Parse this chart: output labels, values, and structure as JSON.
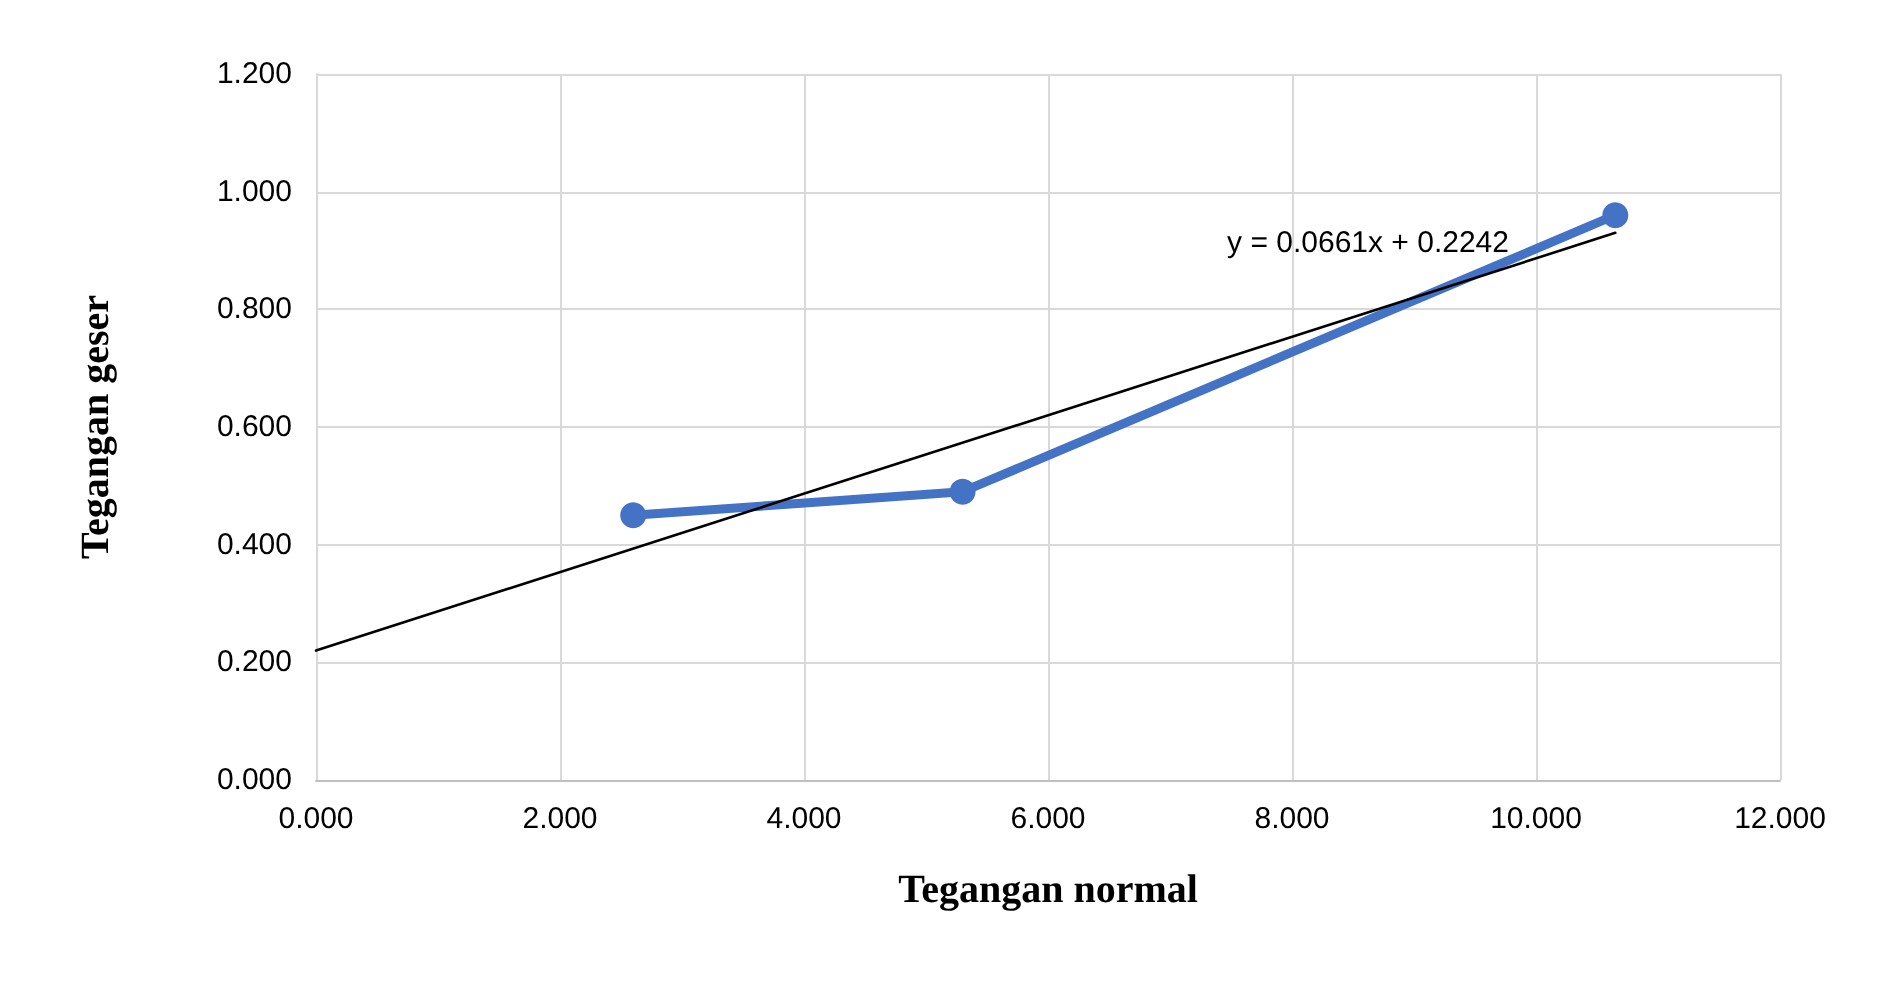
{
  "chart_data": {
    "type": "line",
    "xlabel": "Tegangan normal",
    "ylabel": "Tegangan geser",
    "xlim": [
      0,
      12
    ],
    "ylim": [
      0,
      1.2
    ],
    "xticks": [
      {
        "value": 0,
        "label": "0.000"
      },
      {
        "value": 2,
        "label": "2.000"
      },
      {
        "value": 4,
        "label": "4.000"
      },
      {
        "value": 6,
        "label": "6.000"
      },
      {
        "value": 8,
        "label": "8.000"
      },
      {
        "value": 10,
        "label": "10.000"
      },
      {
        "value": 12,
        "label": "12.000"
      }
    ],
    "yticks": [
      {
        "value": 0,
        "label": "0.000"
      },
      {
        "value": 0.2,
        "label": "0.200"
      },
      {
        "value": 0.4,
        "label": "0.400"
      },
      {
        "value": 0.6,
        "label": "0.600"
      },
      {
        "value": 0.8,
        "label": "0.800"
      },
      {
        "value": 1,
        "label": "1.000"
      },
      {
        "value": 1.2,
        "label": "1.200"
      }
    ],
    "grid": true,
    "marker": "circle",
    "line_style": "solid",
    "series": [
      {
        "color": "#4472c4",
        "x": [
          2.6,
          5.3,
          10.65
        ],
        "values": [
          0.45,
          0.49,
          0.96
        ]
      },
      {
        "type": "line",
        "marker": "none",
        "color": "#000000",
        "x": [
          0,
          10.65
        ],
        "values": [
          0.22,
          0.93
        ]
      }
    ],
    "annotations": [
      "y = 0.0661x + 0.2242"
    ]
  }
}
